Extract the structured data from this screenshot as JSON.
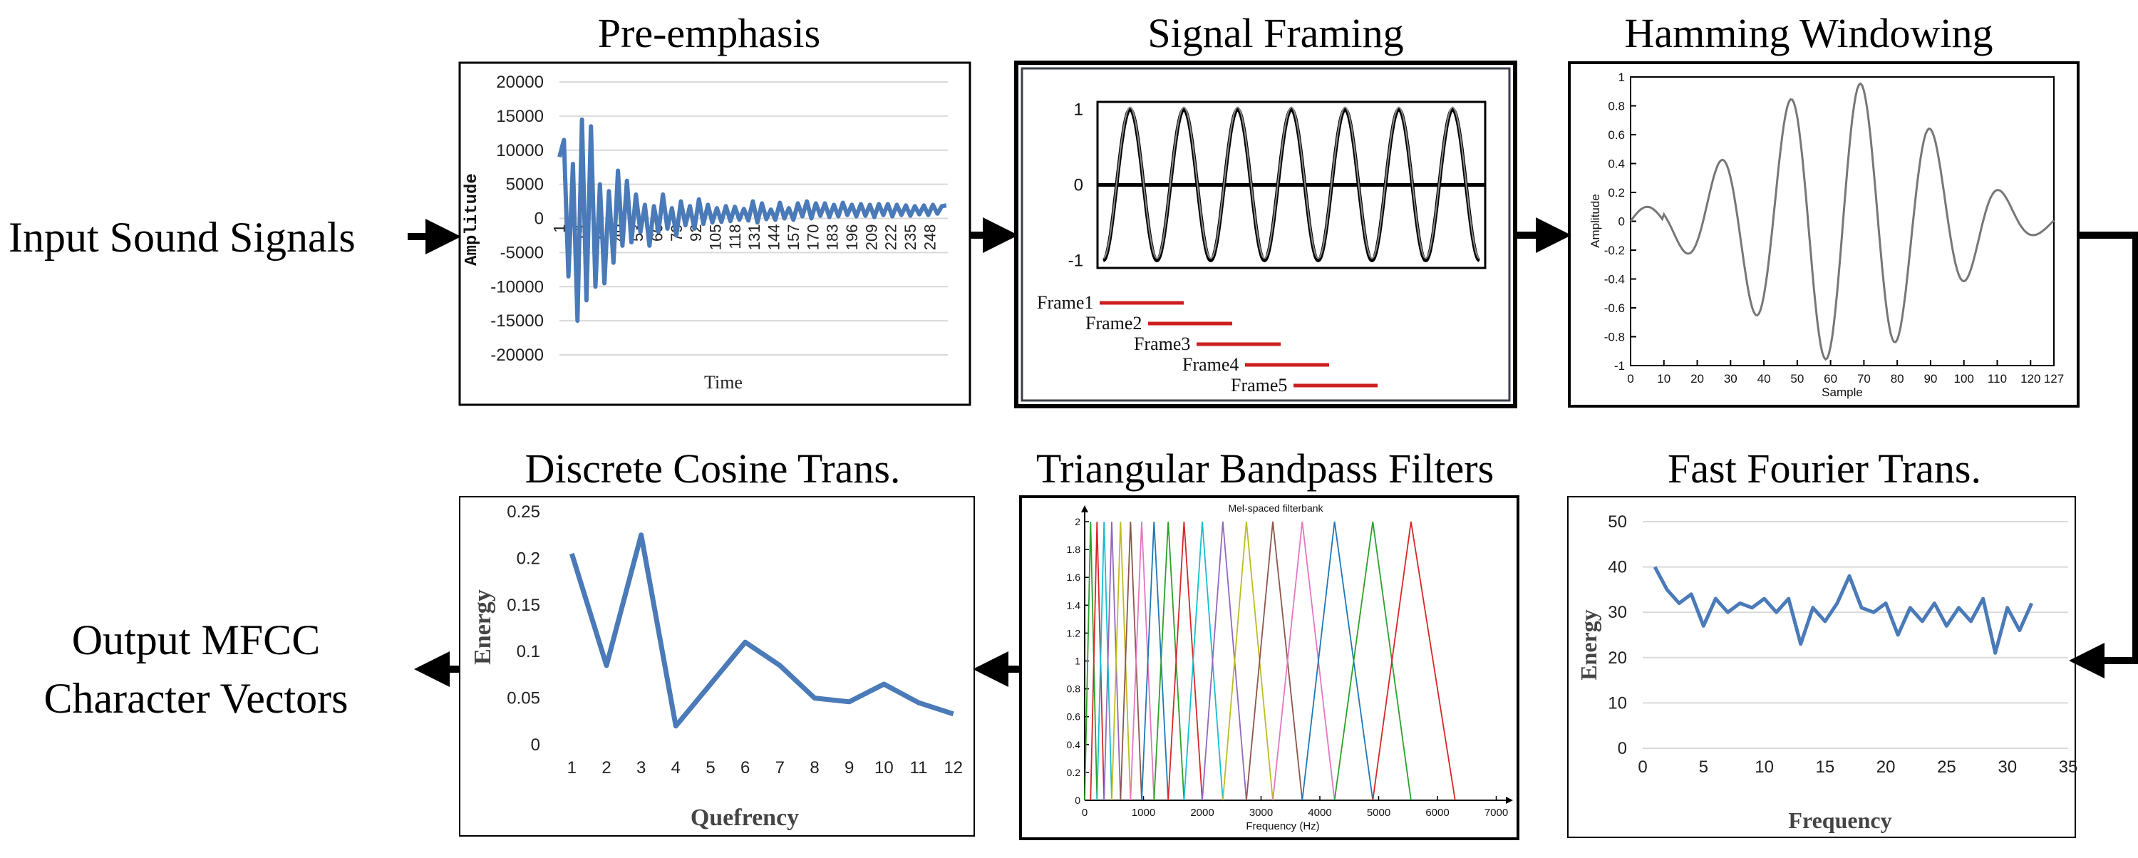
{
  "flow": {
    "input_label": "Input Sound Signals",
    "output_label_line1": "Output MFCC",
    "output_label_line2": "Character Vectors"
  },
  "stages": {
    "pre_emphasis": {
      "title": "Pre-emphasis"
    },
    "signal_framing": {
      "title": "Signal Framing"
    },
    "hamming": {
      "title": "Hamming Windowing"
    },
    "fft": {
      "title": "Fast Fourier Trans."
    },
    "filters": {
      "title": "Triangular Bandpass Filters"
    },
    "dct": {
      "title": "Discrete Cosine Trans."
    }
  },
  "colors": {
    "excel_blue": "#4a7ab8",
    "arrow": "#000000",
    "grid": "#d9d9d9"
  },
  "chart_data": [
    {
      "id": "pre_emphasis",
      "type": "line",
      "xlabel": "Time",
      "ylabel": "Amplitude",
      "x_tick_labels": [
        "1",
        "14",
        "27",
        "40",
        "53",
        "66",
        "79",
        "92",
        "105",
        "118",
        "131",
        "144",
        "157",
        "170",
        "183",
        "196",
        "209",
        "222",
        "235",
        "248"
      ],
      "y_ticks": [
        20000,
        15000,
        10000,
        5000,
        0,
        -5000,
        -10000,
        -15000,
        -20000
      ],
      "ylim": [
        -20000,
        20000
      ],
      "xlim": [
        1,
        260
      ],
      "x": [
        1,
        4,
        7,
        10,
        13,
        16,
        19,
        22,
        25,
        28,
        31,
        34,
        37,
        40,
        43,
        46,
        49,
        52,
        55,
        58,
        61,
        64,
        67,
        70,
        73,
        76,
        79,
        82,
        85,
        88,
        91,
        94,
        97,
        100,
        103,
        106,
        109,
        112,
        115,
        118,
        121,
        124,
        127,
        130,
        133,
        136,
        139,
        142,
        145,
        148,
        151,
        154,
        157,
        160,
        163,
        166,
        169,
        172,
        175,
        178,
        181,
        184,
        187,
        190,
        193,
        196,
        199,
        202,
        205,
        208,
        211,
        214,
        217,
        220,
        223,
        226,
        229,
        232,
        235,
        238,
        241,
        244,
        247,
        250,
        253,
        256,
        259
      ],
      "values": [
        9000,
        11500,
        -8500,
        8000,
        -15000,
        14500,
        -12000,
        13500,
        -10000,
        5000,
        -9500,
        4000,
        -6500,
        7000,
        -4000,
        5500,
        -3500,
        3500,
        -2000,
        2000,
        -4000,
        1800,
        -2000,
        3500,
        -1500,
        1500,
        -2500,
        2500,
        -1000,
        1800,
        -1500,
        2800,
        -800,
        2000,
        -600,
        1500,
        -500,
        1800,
        -400,
        1700,
        -200,
        1400,
        -300,
        2500,
        -600,
        2200,
        -100,
        1300,
        -200,
        2300,
        0,
        1500,
        -200,
        2200,
        300,
        2500,
        0,
        2200,
        400,
        2200,
        200,
        2000,
        300,
        2300,
        500,
        2000,
        300,
        2100,
        400,
        2000,
        200,
        2100,
        500,
        2100,
        300,
        2000,
        500,
        1900,
        400,
        1800,
        600,
        1900,
        500,
        2000,
        700,
        1800,
        1900
      ]
    },
    {
      "id": "signal_framing",
      "type": "line",
      "y_ticks": [
        1,
        0,
        -1
      ],
      "ylim": [
        -1.1,
        1.1
      ],
      "cycles": 7,
      "frame_labels": [
        "Frame1",
        "Frame2",
        "Frame3",
        "Frame4",
        "Frame5"
      ],
      "frame_color": "#cc1f1f"
    },
    {
      "id": "hamming",
      "type": "line",
      "xlabel": "Sample",
      "ylabel": "Amplitude",
      "x_ticks": [
        0,
        10,
        20,
        30,
        40,
        50,
        60,
        70,
        80,
        90,
        100,
        110,
        120,
        127
      ],
      "y_ticks": [
        1,
        0.8,
        0.6,
        0.4,
        0.2,
        0,
        -0.2,
        -0.4,
        -0.6,
        -0.8,
        -1
      ],
      "y_tick_labels": [
        "1",
        "0.8",
        "0.6",
        "0.4",
        "0.2",
        "0",
        "-0.2",
        "-0.4",
        "-0.6",
        "-0.8",
        "-1"
      ],
      "xlim": [
        0,
        127
      ],
      "ylim": [
        -1,
        1
      ],
      "period": 21
    },
    {
      "id": "fft",
      "type": "line",
      "xlabel": "Frequency",
      "ylabel": "Energy",
      "x_ticks": [
        0,
        5,
        10,
        15,
        20,
        25,
        30,
        35
      ],
      "y_ticks": [
        0,
        10,
        20,
        30,
        40,
        50
      ],
      "xlim": [
        0,
        35
      ],
      "ylim": [
        0,
        50
      ],
      "x": [
        1,
        2,
        3,
        4,
        5,
        6,
        7,
        8,
        9,
        10,
        11,
        12,
        13,
        14,
        15,
        16,
        17,
        18,
        19,
        20,
        21,
        22,
        23,
        24,
        25,
        26,
        27,
        28,
        29,
        30,
        31,
        32
      ],
      "values": [
        40,
        35,
        32,
        34,
        27,
        33,
        30,
        32,
        31,
        33,
        30,
        33,
        23,
        31,
        28,
        32,
        38,
        31,
        30,
        32,
        25,
        31,
        28,
        32,
        27,
        31,
        28,
        33,
        21,
        31,
        26,
        32
      ]
    },
    {
      "id": "filters",
      "type": "line",
      "title": "Mel-spaced filterbank",
      "xlabel": "Frequency (Hz)",
      "x_ticks": [
        0,
        1000,
        2000,
        3000,
        4000,
        5000,
        6000,
        7000
      ],
      "y_ticks": [
        0,
        0.2,
        0.4,
        0.6,
        0.8,
        1,
        1.2,
        1.4,
        1.6,
        1.8,
        2
      ],
      "y_tick_labels": [
        "0",
        "0.2",
        "0.4",
        "0.6",
        "0.8",
        "1",
        "1.2",
        "1.4",
        "1.6",
        "1.8",
        "2"
      ],
      "xlim": [
        0,
        7200
      ],
      "ylim": [
        0,
        2
      ],
      "centers_hz": [
        0,
        100,
        210,
        330,
        460,
        610,
        780,
        970,
        1180,
        1420,
        1690,
        2000,
        2350,
        2750,
        3200,
        3700,
        4250,
        4900,
        5550,
        6300
      ],
      "colors": [
        "#1f77b4",
        "#2ca02c",
        "#d62728",
        "#17becf",
        "#9467bd",
        "#bcbd22",
        "#8c564b",
        "#e377c2",
        "#1f77b4",
        "#2ca02c",
        "#d62728",
        "#17becf",
        "#9467bd",
        "#bcbd22",
        "#8c564b",
        "#e377c2",
        "#1f77b4",
        "#2ca02c",
        "#d62728",
        "#17becf"
      ]
    },
    {
      "id": "dct",
      "type": "line",
      "xlabel": "Quefrency",
      "ylabel": "Energy",
      "x_ticks": [
        1,
        2,
        3,
        4,
        5,
        6,
        7,
        8,
        9,
        10,
        11,
        12
      ],
      "y_ticks": [
        0,
        0.05,
        0.1,
        0.15,
        0.2,
        0.25
      ],
      "y_tick_labels": [
        "0",
        "0.05",
        "0.1",
        "0.15",
        "0.2",
        "0.25"
      ],
      "xlim": [
        0.5,
        12.5
      ],
      "ylim": [
        0,
        0.25
      ],
      "x": [
        1,
        2,
        3,
        4,
        5,
        6,
        7,
        8,
        9,
        10,
        11,
        12
      ],
      "values": [
        0.205,
        0.085,
        0.225,
        0.02,
        0.065,
        0.11,
        0.085,
        0.05,
        0.046,
        0.065,
        0.045,
        0.033
      ]
    }
  ]
}
